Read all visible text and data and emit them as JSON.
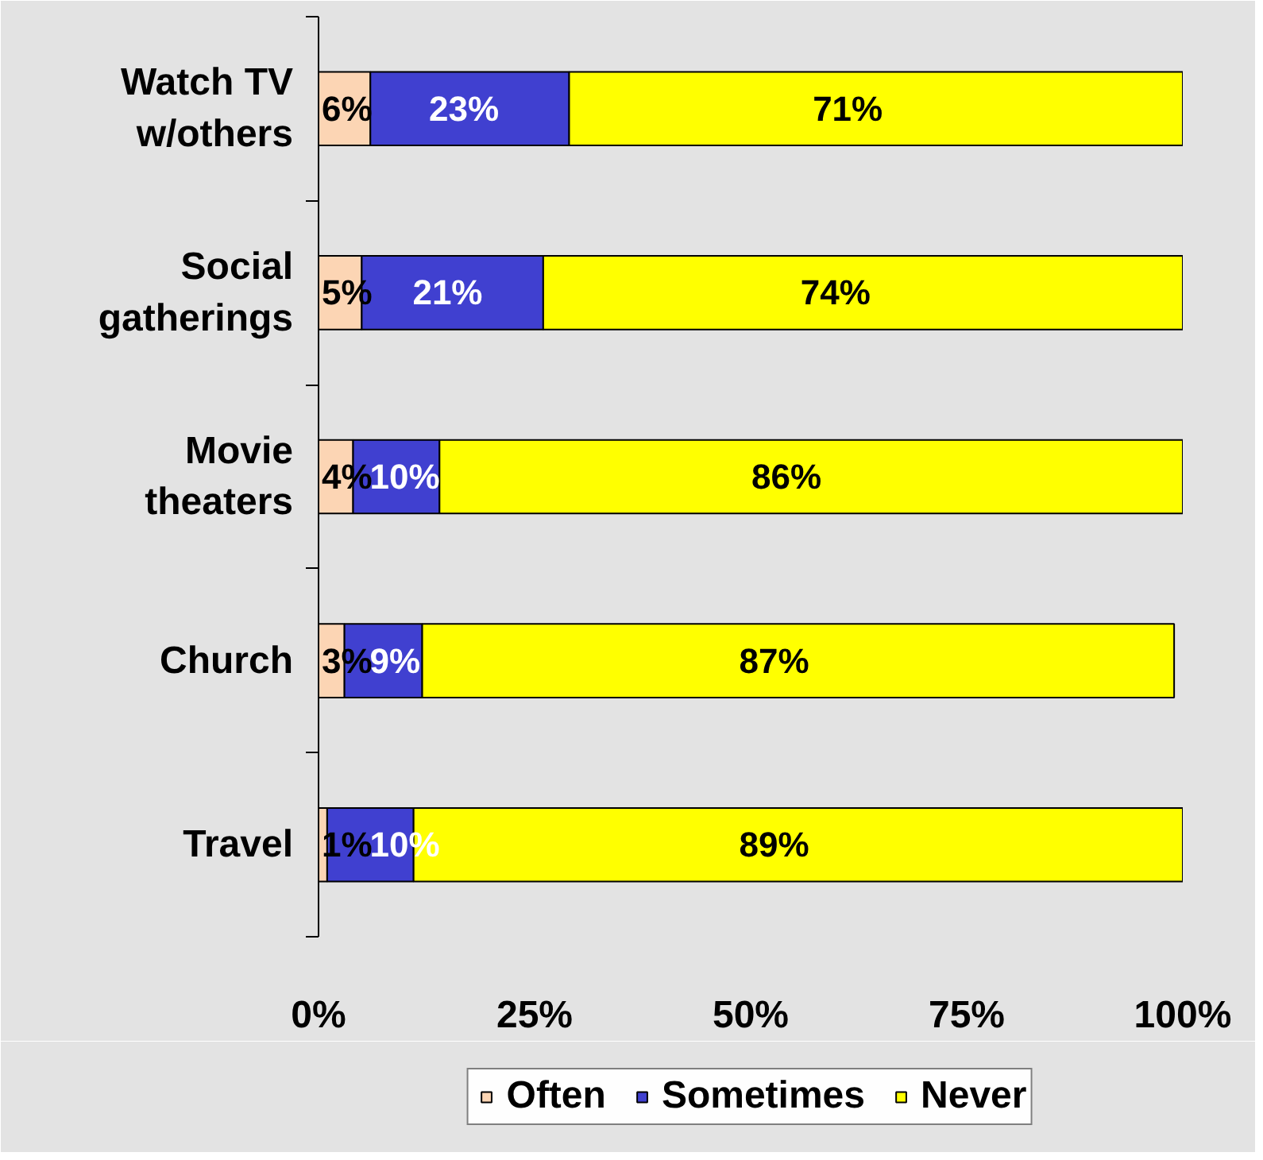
{
  "chart_data": {
    "type": "bar",
    "orientation": "horizontal",
    "stacked": true,
    "categories": [
      "Watch TV\nw/others",
      "Social\ngatherings",
      "Movie\ntheaters",
      "Church",
      "Travel"
    ],
    "series": [
      {
        "name": "Often",
        "color": "#fcd5b4",
        "values": [
          6,
          5,
          4,
          3,
          1
        ],
        "value_labels": [
          "6%",
          "5%",
          "4%",
          "3%",
          "1%"
        ]
      },
      {
        "name": "Sometimes",
        "color": "#4040d0",
        "values": [
          23,
          21,
          10,
          9,
          10
        ],
        "value_labels": [
          "23%",
          "21%",
          "10%",
          "9%",
          "10%"
        ]
      },
      {
        "name": "Never",
        "color": "#ffff00",
        "values": [
          71,
          74,
          86,
          87,
          89
        ],
        "value_labels": [
          "71%",
          "74%",
          "86%",
          "87%",
          "89%"
        ]
      }
    ],
    "xlim": [
      0,
      100
    ],
    "xticks": [
      {
        "value": 0,
        "label": "0%"
      },
      {
        "value": 25,
        "label": "25%"
      },
      {
        "value": 50,
        "label": "50%"
      },
      {
        "value": 75,
        "label": "75%"
      },
      {
        "value": 100,
        "label": "100%"
      }
    ],
    "legend": "bottom"
  }
}
